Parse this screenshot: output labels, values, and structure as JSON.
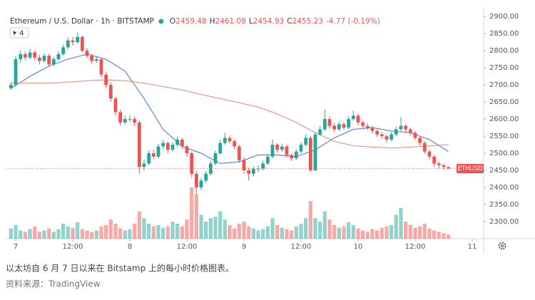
{
  "header": {
    "symbol": "Ethereum / U.S. Dollar · 1h · BITSTAMP",
    "ohlc": [
      {
        "label": "O",
        "value": "2459.48"
      },
      {
        "label": "H",
        "value": "2461.08"
      },
      {
        "label": "L",
        "value": "2454.93"
      },
      {
        "label": "C",
        "value": "2455.23"
      }
    ],
    "change": "-4.77 (-0.19%)",
    "indicators": "4"
  },
  "caption": [
    "以太坊自 6 月 7 日以来在 Bitstamp 上的每小时价格图表。",
    "资料来源：TradingView"
  ],
  "chart_data": {
    "type": "candlestick",
    "up_color": "#26a69a",
    "down_color": "#ef5350",
    "x": [
      -1,
      0,
      1,
      2,
      3,
      4,
      5,
      6,
      7,
      8,
      9,
      10,
      11,
      12,
      13,
      14,
      15,
      16,
      17,
      18,
      19,
      20,
      21,
      22,
      23,
      24,
      25,
      26,
      27,
      28,
      29,
      30,
      31,
      32,
      33,
      34,
      35,
      36,
      37,
      38,
      39,
      40,
      41,
      42,
      43,
      44,
      45,
      46,
      47,
      48,
      49,
      50,
      51,
      52,
      53,
      54,
      55,
      56,
      57,
      58,
      59,
      60,
      61,
      62,
      63,
      64,
      65,
      66,
      67,
      68,
      69,
      70,
      71,
      72,
      73,
      74,
      75,
      76,
      77,
      78,
      79,
      80,
      81,
      82,
      83,
      84,
      85,
      86,
      87,
      88,
      89,
      90,
      91
    ],
    "open": [
      2690,
      2700,
      2775,
      2790,
      2780,
      2795,
      2780,
      2770,
      2785,
      2760,
      2775,
      2790,
      2810,
      2830,
      2825,
      2840,
      2800,
      2785,
      2770,
      2775,
      2730,
      2700,
      2660,
      2620,
      2590,
      2600,
      2600,
      2590,
      2460,
      2470,
      2500,
      2490,
      2520,
      2530,
      2510,
      2525,
      2540,
      2520,
      2500,
      2440,
      2400,
      2420,
      2440,
      2470,
      2500,
      2530,
      2545,
      2535,
      2520,
      2480,
      2450,
      2440,
      2455,
      2455,
      2470,
      2490,
      2525,
      2510,
      2520,
      2495,
      2485,
      2505,
      2525,
      2545,
      2450,
      2555,
      2570,
      2600,
      2580,
      2570,
      2585,
      2575,
      2600,
      2610,
      2590,
      2580,
      2575,
      2565,
      2555,
      2550,
      2540,
      2555,
      2570,
      2580,
      2570,
      2560,
      2545,
      2530,
      2505,
      2490,
      2470,
      2465,
      2459.48
    ],
    "high": [
      2708,
      2785,
      2800,
      2798,
      2805,
      2800,
      2788,
      2792,
      2790,
      2782,
      2798,
      2818,
      2838,
      2840,
      2852,
      2845,
      2808,
      2790,
      2785,
      2780,
      2738,
      2708,
      2665,
      2628,
      2610,
      2612,
      2608,
      2595,
      2482,
      2508,
      2510,
      2528,
      2540,
      2535,
      2532,
      2548,
      2545,
      2525,
      2505,
      2448,
      2428,
      2448,
      2478,
      2508,
      2538,
      2560,
      2552,
      2540,
      2525,
      2488,
      2458,
      2462,
      2465,
      2478,
      2498,
      2540,
      2530,
      2528,
      2525,
      2500,
      2512,
      2532,
      2555,
      2550,
      2562,
      2580,
      2628,
      2608,
      2588,
      2592,
      2590,
      2608,
      2625,
      2615,
      2595,
      2588,
      2580,
      2570,
      2562,
      2555,
      2562,
      2578,
      2605,
      2585,
      2575,
      2565,
      2550,
      2535,
      2510,
      2495,
      2475,
      2470,
      2461.08
    ],
    "low": [
      2685,
      2695,
      2765,
      2772,
      2775,
      2772,
      2760,
      2765,
      2752,
      2755,
      2770,
      2785,
      2805,
      2815,
      2820,
      2795,
      2778,
      2762,
      2765,
      2722,
      2690,
      2650,
      2610,
      2580,
      2585,
      2592,
      2580,
      2440,
      2450,
      2465,
      2482,
      2485,
      2512,
      2500,
      2505,
      2518,
      2512,
      2490,
      2430,
      2380,
      2392,
      2412,
      2435,
      2465,
      2495,
      2525,
      2528,
      2512,
      2472,
      2440,
      2420,
      2432,
      2445,
      2450,
      2465,
      2485,
      2502,
      2505,
      2488,
      2478,
      2480,
      2500,
      2520,
      2445,
      2448,
      2550,
      2565,
      2572,
      2562,
      2565,
      2568,
      2570,
      2595,
      2582,
      2572,
      2568,
      2558,
      2548,
      2542,
      2532,
      2535,
      2550,
      2565,
      2562,
      2552,
      2538,
      2522,
      2498,
      2482,
      2462,
      2455,
      2452,
      2454.93
    ],
    "close": [
      2700,
      2775,
      2790,
      2780,
      2795,
      2780,
      2770,
      2785,
      2760,
      2775,
      2790,
      2810,
      2830,
      2825,
      2840,
      2800,
      2785,
      2770,
      2775,
      2730,
      2700,
      2660,
      2620,
      2590,
      2600,
      2600,
      2590,
      2460,
      2470,
      2500,
      2490,
      2520,
      2530,
      2510,
      2525,
      2540,
      2520,
      2500,
      2440,
      2400,
      2420,
      2440,
      2470,
      2500,
      2530,
      2545,
      2535,
      2520,
      2480,
      2450,
      2440,
      2455,
      2455,
      2470,
      2490,
      2525,
      2510,
      2520,
      2495,
      2485,
      2505,
      2525,
      2545,
      2450,
      2555,
      2570,
      2600,
      2580,
      2570,
      2585,
      2575,
      2600,
      2610,
      2590,
      2580,
      2575,
      2565,
      2555,
      2550,
      2540,
      2555,
      2570,
      2580,
      2570,
      2560,
      2545,
      2530,
      2505,
      2490,
      2470,
      2465,
      2460,
      2455.23
    ],
    "volume": [
      15,
      20,
      12,
      10,
      14,
      18,
      10,
      12,
      15,
      10,
      14,
      22,
      18,
      16,
      24,
      14,
      12,
      10,
      12,
      18,
      20,
      28,
      22,
      15,
      12,
      14,
      22,
      40,
      30,
      22,
      18,
      20,
      16,
      18,
      25,
      22,
      18,
      28,
      75,
      65,
      35,
      25,
      30,
      32,
      40,
      28,
      20,
      15,
      22,
      25,
      18,
      15,
      12,
      14,
      18,
      30,
      20,
      16,
      14,
      12,
      18,
      22,
      30,
      55,
      30,
      25,
      40,
      28,
      20,
      16,
      18,
      24,
      20,
      15,
      12,
      10,
      14,
      12,
      16,
      18,
      20,
      35,
      45,
      25,
      20,
      16,
      18,
      22,
      15,
      12,
      10,
      8,
      6
    ],
    "vlim": [
      0,
      100
    ],
    "series": [
      {
        "color": "#4a7fd4",
        "x": [
          -1,
          3,
          7,
          11,
          15,
          19,
          23,
          27,
          31,
          35,
          39,
          43,
          47,
          51,
          55,
          59,
          63,
          67,
          71,
          75,
          79,
          83,
          87,
          91
        ],
        "values": [
          2690,
          2725,
          2755,
          2775,
          2790,
          2775,
          2740,
          2660,
          2570,
          2520,
          2500,
          2470,
          2475,
          2495,
          2495,
          2490,
          2510,
          2545,
          2570,
          2575,
          2565,
          2560,
          2540,
          2505
        ]
      },
      {
        "color": "#e8907e",
        "x": [
          -1,
          3,
          7,
          11,
          15,
          19,
          23,
          27,
          31,
          35,
          39,
          43,
          47,
          51,
          55,
          59,
          63,
          67,
          71,
          75,
          79,
          83,
          87,
          91
        ],
        "values": [
          2705,
          2705,
          2705,
          2708,
          2712,
          2715,
          2712,
          2705,
          2695,
          2685,
          2672,
          2660,
          2648,
          2635,
          2615,
          2590,
          2560,
          2535,
          2522,
          2518,
          2515,
          2518,
          2522,
          2525
        ]
      }
    ],
    "last_price_label": "ETHUSD",
    "xlim": [
      -2.1,
      98.4
    ],
    "xticks": [
      {
        "value": 0,
        "label": "7"
      },
      {
        "value": 12,
        "label": "12:00"
      },
      {
        "value": 24,
        "label": "8"
      },
      {
        "value": 36,
        "label": "12:00"
      },
      {
        "value": 48,
        "label": "9"
      },
      {
        "value": 60,
        "label": "12:00"
      },
      {
        "value": 72,
        "label": "10"
      },
      {
        "value": 84,
        "label": "12:00"
      },
      {
        "value": 96,
        "label": "11"
      }
    ],
    "ylim": [
      2250,
      2917
    ],
    "yticks": [
      {
        "value": 2300,
        "label": "2300.00"
      },
      {
        "value": 2350,
        "label": "2350.00"
      },
      {
        "value": 2400,
        "label": "2400.00"
      },
      {
        "value": 2450,
        "label": "2450.00"
      },
      {
        "value": 2500,
        "label": "2500.00"
      },
      {
        "value": 2550,
        "label": "2550.00"
      },
      {
        "value": 2600,
        "label": "2600.00"
      },
      {
        "value": 2650,
        "label": "2650.00"
      },
      {
        "value": 2700,
        "label": "2700.00"
      },
      {
        "value": 2750,
        "label": "2750.00"
      },
      {
        "value": 2800,
        "label": "2800.00"
      },
      {
        "value": 2850,
        "label": "2850.00"
      },
      {
        "value": 2900,
        "label": "2900.00"
      }
    ]
  }
}
